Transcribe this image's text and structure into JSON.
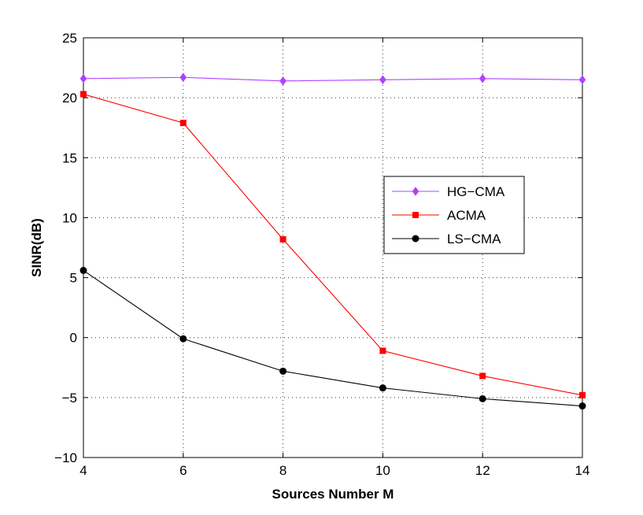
{
  "chart_data": {
    "type": "line",
    "title": "",
    "xlabel": "Sources Number M",
    "ylabel": "SINR(dB)",
    "xlim": [
      4,
      14
    ],
    "ylim": [
      -10,
      25
    ],
    "xticks": [
      4,
      6,
      8,
      10,
      12,
      14
    ],
    "yticks": [
      -10,
      -5,
      0,
      5,
      10,
      15,
      20,
      25
    ],
    "xtick_labels": [
      "4",
      "6",
      "8",
      "10",
      "12",
      "14"
    ],
    "ytick_labels": [
      "−10",
      "−5",
      "0",
      "5",
      "10",
      "15",
      "20",
      "25"
    ],
    "grid": true,
    "legend_position": "center-right",
    "x": [
      4,
      6,
      8,
      10,
      12,
      14
    ],
    "series": [
      {
        "name": "HG−CMA",
        "color": "#b041ff",
        "marker": "diamond",
        "values": [
          21.6,
          21.7,
          21.4,
          21.5,
          21.6,
          21.5
        ]
      },
      {
        "name": "ACMA",
        "color": "#ff0000",
        "marker": "square",
        "values": [
          20.3,
          17.9,
          8.2,
          -1.1,
          -3.2,
          -4.8
        ]
      },
      {
        "name": "LS−CMA",
        "color": "#000000",
        "marker": "circle",
        "values": [
          5.6,
          -0.1,
          -2.8,
          -4.2,
          -5.1,
          -5.7
        ]
      }
    ]
  }
}
